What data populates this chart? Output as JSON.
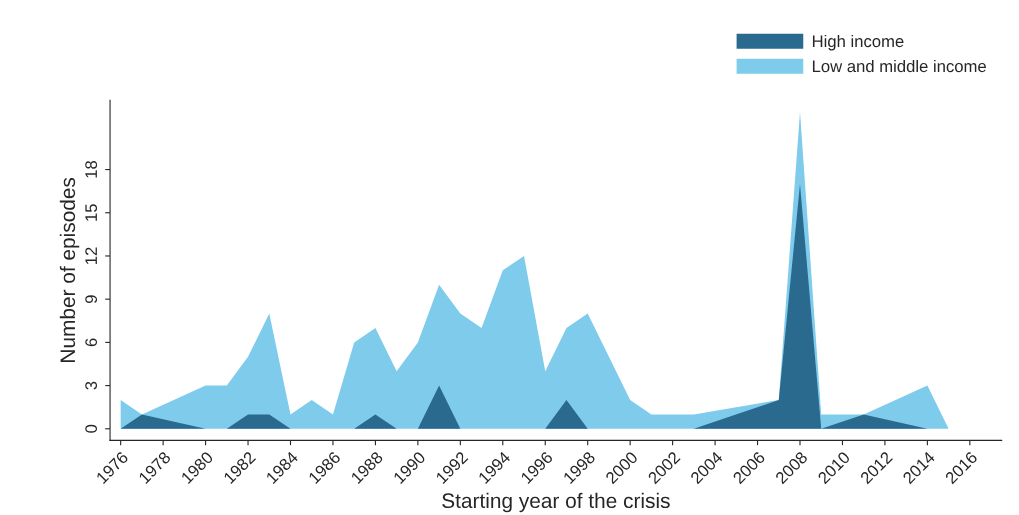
{
  "chart_data": {
    "type": "area",
    "xlabel": "Starting year of the crisis",
    "ylabel": "Number of episodes",
    "xlim": [
      1975.5,
      2017.5
    ],
    "ylim": [
      -0.8,
      22.8
    ],
    "xticks": [
      1976,
      1978,
      1980,
      1982,
      1984,
      1986,
      1988,
      1990,
      1992,
      1994,
      1996,
      1998,
      2000,
      2002,
      2004,
      2006,
      2008,
      2010,
      2012,
      2014,
      2016
    ],
    "yticks": [
      0,
      3,
      6,
      9,
      12,
      15,
      18
    ],
    "legend": "top right",
    "grid": false,
    "series": [
      {
        "name": "High income",
        "color": "#2b6a8f",
        "x": [
          1976,
          1977,
          1980,
          1981,
          1982,
          1983,
          1984,
          1987,
          1988,
          1989,
          1990,
          1991,
          1992,
          1996,
          1997,
          1998,
          2003,
          2007,
          2008,
          2009,
          2011,
          2014
        ],
        "values": [
          0,
          1,
          0,
          0,
          1,
          1,
          0,
          0,
          1,
          0,
          0,
          3,
          0,
          0,
          2,
          0,
          0,
          2,
          17,
          0,
          1,
          0
        ]
      },
      {
        "name": "Low and middle income",
        "color": "#7ecbec",
        "x": [
          1976,
          1977,
          1980,
          1981,
          1982,
          1983,
          1984,
          1985,
          1986,
          1987,
          1988,
          1989,
          1990,
          1991,
          1992,
          1993,
          1994,
          1995,
          1996,
          1997,
          1998,
          2000,
          2001,
          2003,
          2007,
          2008,
          2009,
          2011,
          2014,
          2015
        ],
        "values": [
          2,
          1,
          3,
          3,
          5,
          8,
          1,
          2,
          1,
          6,
          7,
          4,
          6,
          10,
          8,
          7,
          11,
          12,
          4,
          7,
          8,
          2,
          1,
          1,
          2,
          22,
          1,
          1,
          3,
          0
        ]
      }
    ]
  }
}
